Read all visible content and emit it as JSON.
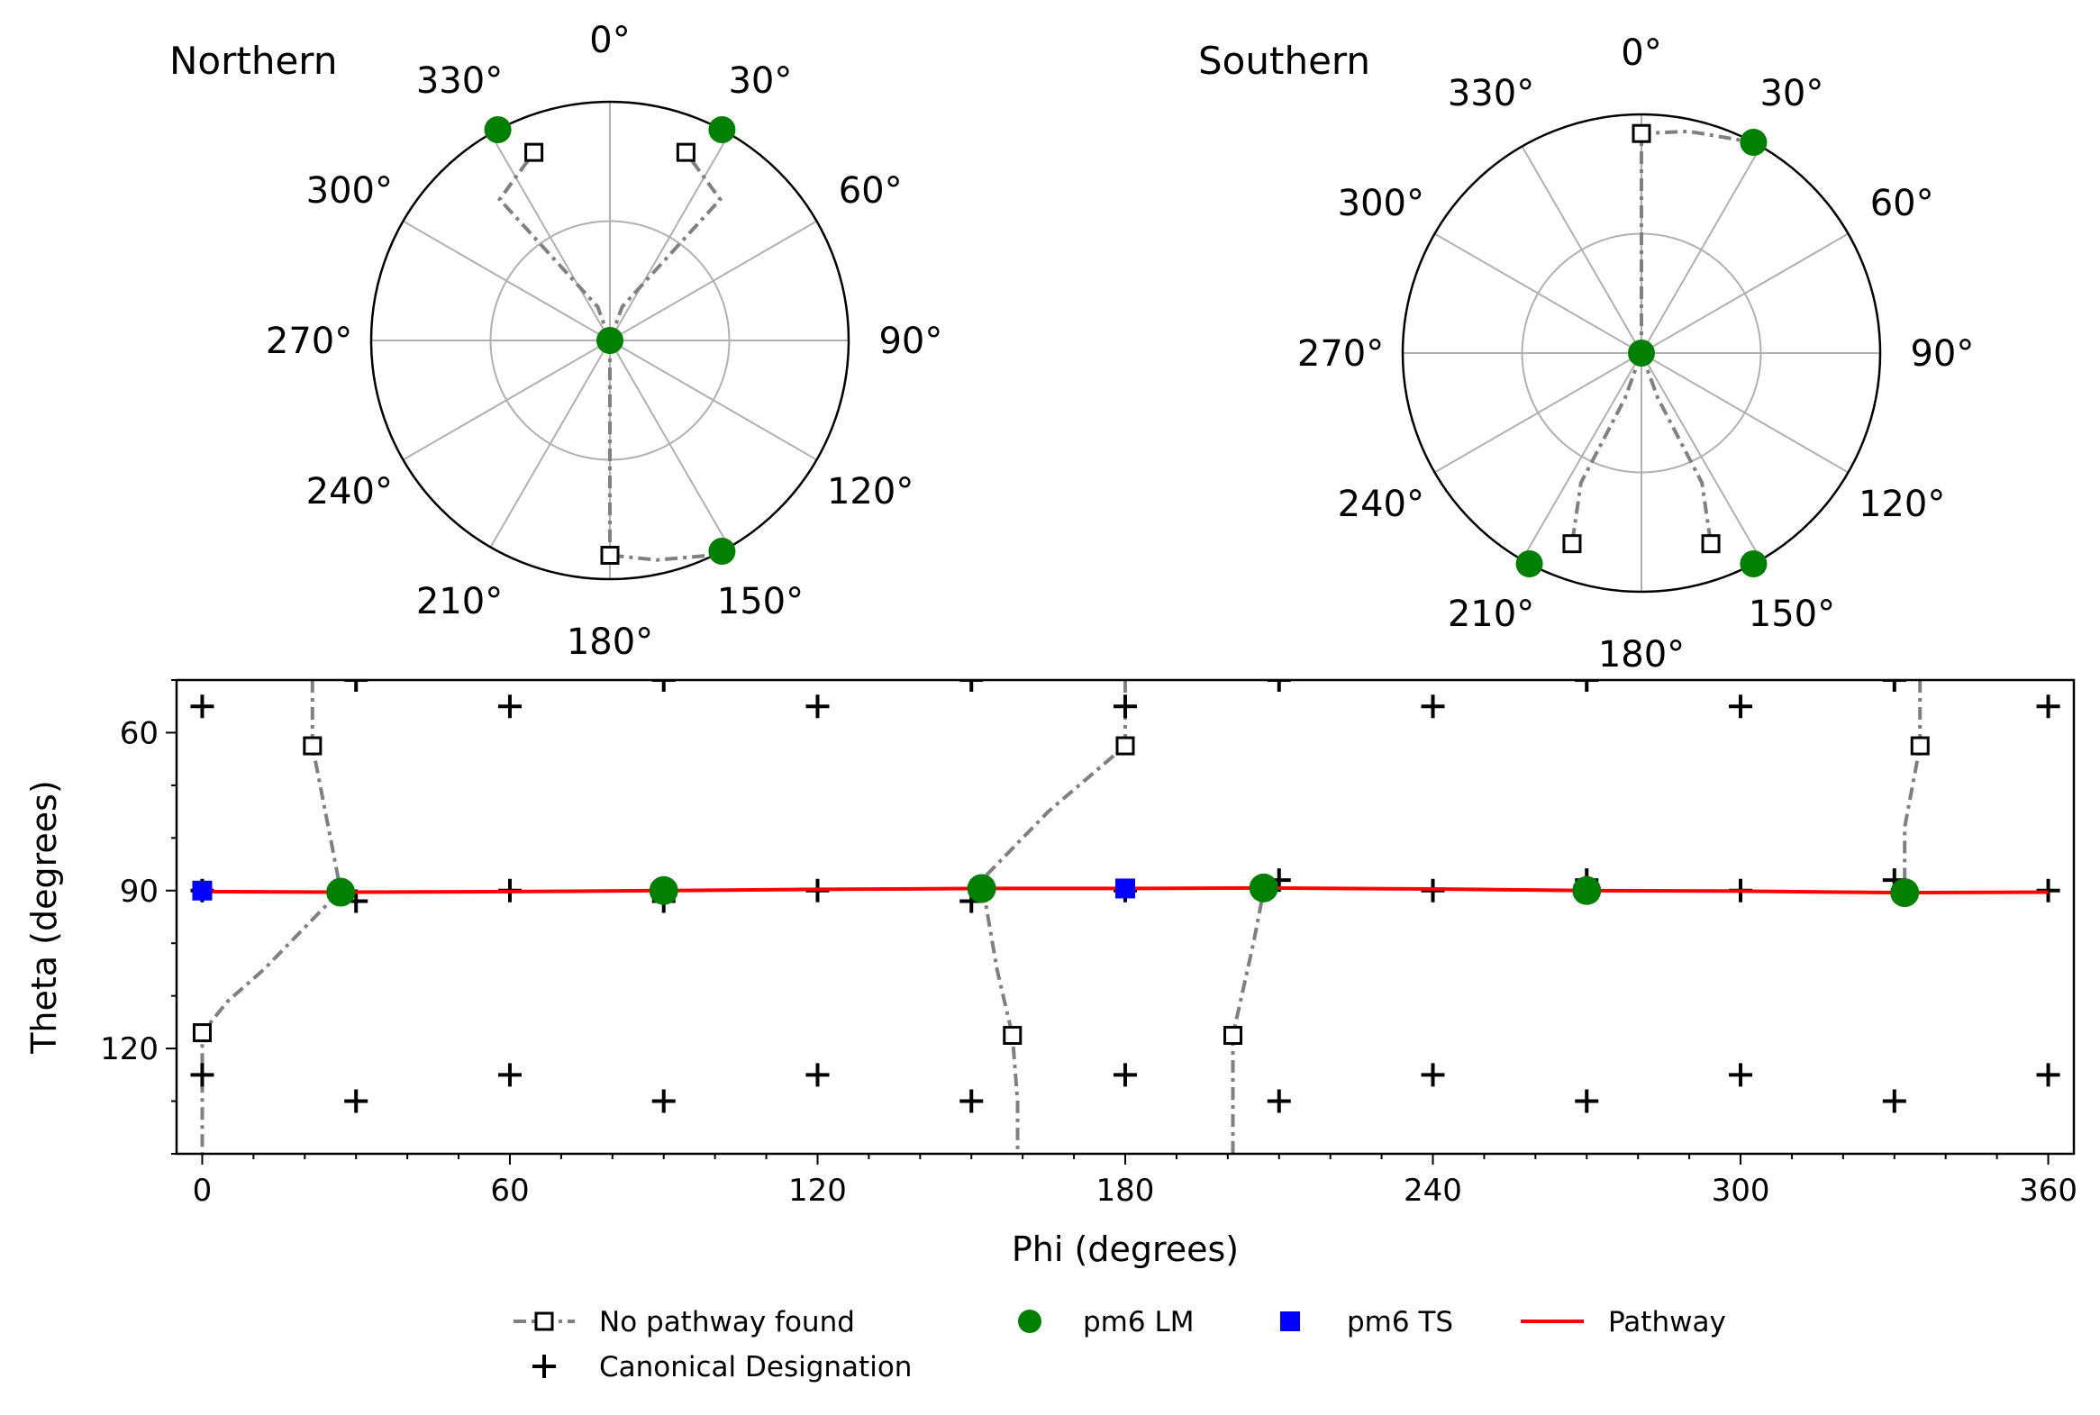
{
  "colors": {
    "no_pathway": "#808080",
    "lm": "#008000",
    "ts": "#0000ff",
    "pathway": "#ff0000",
    "canonical": "#000000",
    "grid": "#b0b0b0"
  },
  "chart_data": [
    {
      "type": "scatter",
      "projection": "polar",
      "title": "Northern",
      "angle_tick_labels": [
        "0°",
        "30°",
        "60°",
        "90°",
        "120°",
        "150°",
        "180°",
        "210°",
        "240°",
        "270°",
        "300°",
        "330°"
      ],
      "r_max": 1.0,
      "r_grid": [
        0.5
      ],
      "series": [
        {
          "name": "No pathway found",
          "style": "dashdot-open-square",
          "segments": [
            [
              [
                0,
                0
              ],
              [
                20,
                0.15
              ],
              [
                38,
                0.75
              ],
              [
                22,
                0.85
              ]
            ],
            [
              [
                0,
                0
              ],
              [
                -20,
                0.15
              ],
              [
                -38,
                0.75
              ],
              [
                -22,
                0.85
              ]
            ],
            [
              [
                0,
                0
              ],
              [
                180,
                0.2
              ],
              [
                180,
                0.5
              ],
              [
                180,
                0.9
              ],
              [
                168,
                0.94
              ],
              [
                154,
                1.0
              ]
            ]
          ],
          "markers": [
            [
              22,
              0.85
            ],
            [
              -22,
              0.85
            ],
            [
              180,
              0.9
            ]
          ]
        },
        {
          "name": "pm6 LM",
          "points": [
            [
              0,
              0
            ],
            [
              28,
              1.0
            ],
            [
              -28,
              1.0
            ],
            [
              152,
              1.0
            ]
          ]
        }
      ]
    },
    {
      "type": "scatter",
      "projection": "polar",
      "title": "Southern",
      "angle_tick_labels": [
        "0°",
        "30°",
        "60°",
        "90°",
        "120°",
        "150°",
        "180°",
        "210°",
        "240°",
        "270°",
        "300°",
        "330°"
      ],
      "r_max": 1.0,
      "r_grid": [
        0.5
      ],
      "series": [
        {
          "name": "No pathway found",
          "style": "dashdot-open-square",
          "segments": [
            [
              [
                0,
                0
              ],
              [
                0,
                0.5
              ],
              [
                0,
                0.92
              ],
              [
                12,
                0.95
              ],
              [
                28,
                1.0
              ]
            ],
            [
              [
                0,
                0
              ],
              [
                200,
                0.2
              ],
              [
                205,
                0.6
              ],
              [
                200,
                0.85
              ]
            ],
            [
              [
                0,
                0
              ],
              [
                160,
                0.2
              ],
              [
                155,
                0.6
              ],
              [
                160,
                0.85
              ]
            ]
          ],
          "markers": [
            [
              0,
              0.92
            ],
            [
              200,
              0.85
            ],
            [
              160,
              0.85
            ]
          ]
        },
        {
          "name": "pm6 LM",
          "points": [
            [
              0,
              0
            ],
            [
              28,
              1.0
            ],
            [
              152,
              1.0
            ],
            [
              208,
              1.0
            ]
          ]
        }
      ]
    },
    {
      "type": "scatter",
      "xlabel": "Phi (degrees)",
      "ylabel": "Theta (degrees)",
      "xlim": [
        -5,
        365
      ],
      "ylim": [
        140,
        50
      ],
      "xticks": [
        0,
        60,
        120,
        180,
        240,
        300,
        360
      ],
      "yticks": [
        60,
        90,
        120
      ],
      "x_minor_step": 10,
      "y_minor_step": 10,
      "series": [
        {
          "name": "No pathway found",
          "style": "dashdot-open-square",
          "segments": [
            [
              [
                21.5,
                50
              ],
              [
                21.5,
                56
              ],
              [
                21.5,
                62.5
              ],
              [
                25,
                80
              ],
              [
                27,
                90
              ],
              [
                20,
                97
              ],
              [
                12,
                105
              ],
              [
                5,
                111
              ],
              [
                0,
                117
              ],
              [
                0,
                130
              ],
              [
                0,
                140
              ]
            ],
            [
              [
                180,
                50
              ],
              [
                180,
                56
              ],
              [
                180,
                62.5
              ],
              [
                165,
                75
              ],
              [
                152,
                88
              ],
              [
                155,
                105
              ],
              [
                158,
                117.5
              ],
              [
                159,
                130
              ],
              [
                159,
                140
              ]
            ],
            [
              [
                335,
                50
              ],
              [
                335,
                56
              ],
              [
                335,
                62.5
              ],
              [
                332,
                78
              ],
              [
                332,
                90
              ]
            ],
            [
              [
                201,
                140
              ],
              [
                201,
                130
              ],
              [
                201,
                117.5
              ],
              [
                205,
                100
              ],
              [
                207,
                90
              ]
            ]
          ],
          "markers": [
            [
              21.5,
              62.5
            ],
            [
              180,
              62.5
            ],
            [
              335,
              62.5
            ],
            [
              0,
              117
            ],
            [
              158,
              117.5
            ],
            [
              201,
              117.5
            ]
          ]
        },
        {
          "name": "Canonical Designation",
          "points": [
            [
              0,
              55
            ],
            [
              30,
              50
            ],
            [
              60,
              55
            ],
            [
              90,
              50
            ],
            [
              120,
              55
            ],
            [
              150,
              50
            ],
            [
              180,
              55
            ],
            [
              210,
              50
            ],
            [
              240,
              55
            ],
            [
              270,
              50
            ],
            [
              300,
              55
            ],
            [
              330,
              50
            ],
            [
              360,
              55
            ],
            [
              0,
              90
            ],
            [
              30,
              92
            ],
            [
              60,
              90
            ],
            [
              90,
              92
            ],
            [
              120,
              90
            ],
            [
              150,
              92
            ],
            [
              180,
              90
            ],
            [
              210,
              88
            ],
            [
              240,
              90
            ],
            [
              270,
              88
            ],
            [
              300,
              90
            ],
            [
              330,
              88
            ],
            [
              360,
              90
            ],
            [
              0,
              125
            ],
            [
              30,
              130
            ],
            [
              60,
              125
            ],
            [
              90,
              130
            ],
            [
              120,
              125
            ],
            [
              150,
              130
            ],
            [
              180,
              125
            ],
            [
              210,
              130
            ],
            [
              240,
              125
            ],
            [
              270,
              130
            ],
            [
              300,
              125
            ],
            [
              330,
              130
            ],
            [
              360,
              125
            ]
          ]
        },
        {
          "name": "pm6 LM",
          "points": [
            [
              27,
              90.3
            ],
            [
              90,
              90
            ],
            [
              152,
              89.6
            ],
            [
              207,
              89.5
            ],
            [
              270,
              90
            ],
            [
              332,
              90.4
            ]
          ]
        },
        {
          "name": "pm6 TS",
          "points": [
            [
              0,
              90
            ],
            [
              180,
              89.6
            ]
          ]
        },
        {
          "name": "Pathway",
          "points": [
            [
              0,
              90.2
            ],
            [
              27,
              90.3
            ],
            [
              60,
              90.2
            ],
            [
              90,
              90
            ],
            [
              115,
              89.8
            ],
            [
              152,
              89.6
            ],
            [
              180,
              89.6
            ],
            [
              207,
              89.5
            ],
            [
              240,
              89.7
            ],
            [
              270,
              90
            ],
            [
              300,
              90.1
            ],
            [
              332,
              90.4
            ],
            [
              360,
              90.3
            ]
          ]
        }
      ],
      "legend": [
        "No pathway found",
        "pm6 LM",
        "pm6 TS",
        "Pathway",
        "Canonical Designation"
      ],
      "legend_placement": "bottom"
    }
  ]
}
